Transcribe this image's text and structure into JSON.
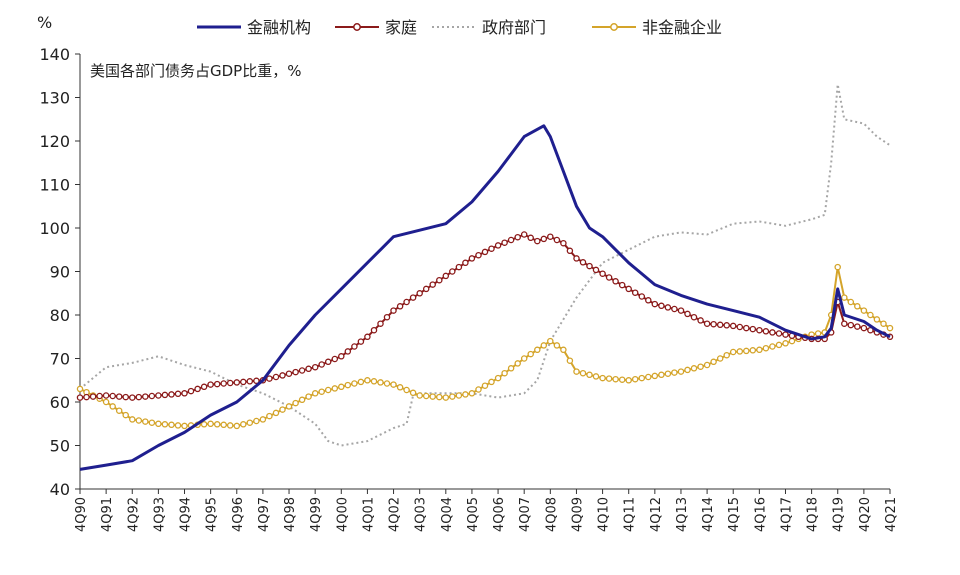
{
  "chart_data": {
    "type": "line",
    "y_unit": "%",
    "annotation": "美国各部门债务占GDP比重，%",
    "ylim": [
      40,
      140
    ],
    "y_ticks": [
      40,
      50,
      60,
      70,
      80,
      90,
      100,
      110,
      120,
      130,
      140
    ],
    "x_tick_labels": [
      "4Q90",
      "4Q91",
      "4Q92",
      "4Q93",
      "4Q94",
      "4Q95",
      "4Q96",
      "4Q97",
      "4Q98",
      "4Q99",
      "4Q00",
      "4Q01",
      "4Q02",
      "4Q03",
      "4Q04",
      "4Q05",
      "4Q06",
      "4Q07",
      "4Q08",
      "4Q09",
      "4Q10",
      "4Q11",
      "4Q12",
      "4Q13",
      "4Q14",
      "4Q15",
      "4Q16",
      "4Q17",
      "4Q18",
      "4Q19",
      "4Q20",
      "4Q21"
    ],
    "x_range": [
      1990.75,
      2021.75
    ],
    "grid": false,
    "legend_position": "top",
    "colors": {
      "financial": "#1f1f8f",
      "household": "#8b1a1a",
      "government": "#a6a6a6",
      "nonfinancial": "#d4a42a"
    },
    "series": [
      {
        "key": "financial",
        "name": "金融机构",
        "style": "solid",
        "points": [
          [
            1990.75,
            44.5
          ],
          [
            1991.75,
            45.5
          ],
          [
            1992.75,
            46.5
          ],
          [
            1993.75,
            50
          ],
          [
            1994.75,
            53
          ],
          [
            1995.75,
            57
          ],
          [
            1996.75,
            60
          ],
          [
            1997.75,
            65
          ],
          [
            1998.75,
            73
          ],
          [
            1999.75,
            80
          ],
          [
            2000.75,
            86
          ],
          [
            2001.75,
            92
          ],
          [
            2002.75,
            98
          ],
          [
            2003.75,
            99.5
          ],
          [
            2004.75,
            101
          ],
          [
            2005.75,
            106
          ],
          [
            2006.75,
            113
          ],
          [
            2007.75,
            121
          ],
          [
            2008.5,
            123.5
          ],
          [
            2008.75,
            121
          ],
          [
            2009.25,
            113
          ],
          [
            2009.75,
            105
          ],
          [
            2010.25,
            100
          ],
          [
            2010.75,
            98
          ],
          [
            2011.75,
            92
          ],
          [
            2012.75,
            87
          ],
          [
            2013.75,
            84.5
          ],
          [
            2014.75,
            82.5
          ],
          [
            2015.75,
            81
          ],
          [
            2016.75,
            79.5
          ],
          [
            2017.75,
            76.5
          ],
          [
            2018.75,
            74.5
          ],
          [
            2019.25,
            75
          ],
          [
            2019.5,
            77
          ],
          [
            2019.75,
            86
          ],
          [
            2020.0,
            80
          ],
          [
            2020.75,
            78.5
          ],
          [
            2021.25,
            76.5
          ],
          [
            2021.75,
            75
          ]
        ]
      },
      {
        "key": "household",
        "name": "家庭",
        "style": "solid-marker",
        "points": [
          [
            1990.75,
            61
          ],
          [
            1991.75,
            61.5
          ],
          [
            1992.75,
            61
          ],
          [
            1993.75,
            61.5
          ],
          [
            1994.75,
            62
          ],
          [
            1995.75,
            64
          ],
          [
            1996.75,
            64.5
          ],
          [
            1997.75,
            65
          ],
          [
            1998.75,
            66.5
          ],
          [
            1999.75,
            68
          ],
          [
            2000.75,
            70.5
          ],
          [
            2001.75,
            75
          ],
          [
            2002.75,
            81
          ],
          [
            2003.75,
            85
          ],
          [
            2004.75,
            89
          ],
          [
            2005.75,
            93
          ],
          [
            2006.75,
            96
          ],
          [
            2007.75,
            98.5
          ],
          [
            2008.25,
            97
          ],
          [
            2008.75,
            98
          ],
          [
            2009.25,
            96.5
          ],
          [
            2009.75,
            93
          ],
          [
            2010.75,
            89.5
          ],
          [
            2011.75,
            86
          ],
          [
            2012.75,
            82.5
          ],
          [
            2013.75,
            81
          ],
          [
            2014.75,
            78
          ],
          [
            2015.75,
            77.5
          ],
          [
            2016.75,
            76.5
          ],
          [
            2017.75,
            75.5
          ],
          [
            2018.75,
            74.5
          ],
          [
            2019.25,
            74.5
          ],
          [
            2019.5,
            76
          ],
          [
            2019.75,
            83
          ],
          [
            2020.0,
            78
          ],
          [
            2020.75,
            77
          ],
          [
            2021.25,
            76
          ],
          [
            2021.75,
            75
          ]
        ]
      },
      {
        "key": "government",
        "name": "政府部门",
        "style": "dotted",
        "points": [
          [
            1990.75,
            63
          ],
          [
            1991.75,
            68
          ],
          [
            1992.75,
            69
          ],
          [
            1993.75,
            70.5
          ],
          [
            1994.75,
            68.5
          ],
          [
            1995.75,
            67
          ],
          [
            1996.75,
            64
          ],
          [
            1997.75,
            62
          ],
          [
            1998.75,
            59
          ],
          [
            1999.75,
            55
          ],
          [
            2000.25,
            51
          ],
          [
            2000.75,
            50
          ],
          [
            2001.75,
            51
          ],
          [
            2002.75,
            54
          ],
          [
            2003.25,
            55
          ],
          [
            2003.5,
            61.5
          ],
          [
            2003.75,
            62
          ],
          [
            2004.75,
            62
          ],
          [
            2005.75,
            62
          ],
          [
            2006.75,
            61
          ],
          [
            2007.75,
            62
          ],
          [
            2008.25,
            65
          ],
          [
            2008.75,
            74
          ],
          [
            2009.75,
            84
          ],
          [
            2010.75,
            92
          ],
          [
            2011.75,
            95
          ],
          [
            2012.75,
            98
          ],
          [
            2013.75,
            99
          ],
          [
            2014.75,
            98.5
          ],
          [
            2015.75,
            101
          ],
          [
            2016.75,
            101.5
          ],
          [
            2017.75,
            100.5
          ],
          [
            2018.75,
            102
          ],
          [
            2019.25,
            103
          ],
          [
            2019.5,
            115
          ],
          [
            2019.75,
            133
          ],
          [
            2020.0,
            125
          ],
          [
            2020.75,
            124
          ],
          [
            2021.25,
            121
          ],
          [
            2021.75,
            119
          ]
        ]
      },
      {
        "key": "nonfinancial",
        "name": "非金融企业",
        "style": "solid-marker",
        "points": [
          [
            1990.75,
            63
          ],
          [
            1991.75,
            60
          ],
          [
            1992.75,
            56
          ],
          [
            1993.75,
            55
          ],
          [
            1994.75,
            54.5
          ],
          [
            1995.75,
            55
          ],
          [
            1996.75,
            54.5
          ],
          [
            1997.75,
            56
          ],
          [
            1998.75,
            59
          ],
          [
            1999.75,
            62
          ],
          [
            2000.75,
            63.5
          ],
          [
            2001.75,
            65
          ],
          [
            2002.75,
            64
          ],
          [
            2003.75,
            61.5
          ],
          [
            2004.75,
            61
          ],
          [
            2005.75,
            62
          ],
          [
            2006.75,
            65.5
          ],
          [
            2007.75,
            70
          ],
          [
            2008.75,
            74
          ],
          [
            2009.25,
            72
          ],
          [
            2009.75,
            67
          ],
          [
            2010.75,
            65.5
          ],
          [
            2011.75,
            65
          ],
          [
            2012.75,
            66
          ],
          [
            2013.75,
            67
          ],
          [
            2014.75,
            68.5
          ],
          [
            2015.75,
            71.5
          ],
          [
            2016.75,
            72
          ],
          [
            2017.75,
            73.5
          ],
          [
            2018.75,
            75.5
          ],
          [
            2019.25,
            76
          ],
          [
            2019.5,
            80
          ],
          [
            2019.75,
            91
          ],
          [
            2020.0,
            84
          ],
          [
            2020.75,
            81
          ],
          [
            2021.25,
            79
          ],
          [
            2021.75,
            77
          ]
        ]
      }
    ]
  }
}
